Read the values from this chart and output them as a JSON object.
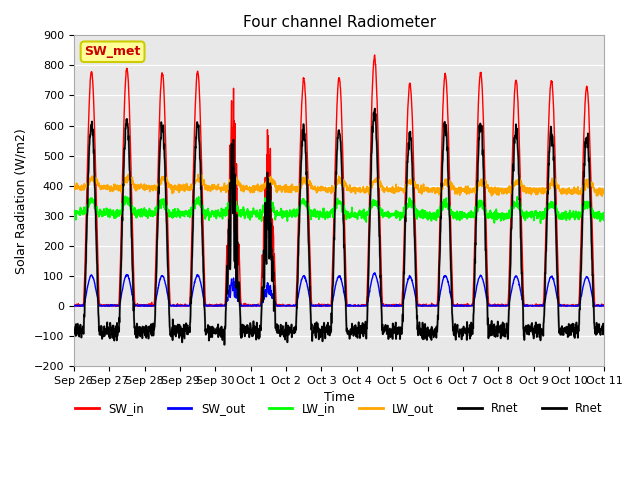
{
  "title": "Four channel Radiometer",
  "xlabel": "Time",
  "ylabel": "Solar Radiation (W/m2)",
  "ylim": [
    -200,
    900
  ],
  "yticks": [
    -200,
    -100,
    0,
    100,
    200,
    300,
    400,
    500,
    600,
    700,
    800,
    900
  ],
  "num_days": 15,
  "legend_label": "SW_met",
  "series_names": [
    "SW_in",
    "SW_out",
    "LW_in",
    "LW_out",
    "Rnet",
    "Rnet"
  ],
  "series_colors": [
    "#ff0000",
    "#0000ff",
    "#00ff00",
    "#ffa500",
    "#000000",
    "#000000"
  ],
  "background_color": "#ffffff",
  "plot_bg_color": "#e8e8e8",
  "grid_color": "#ffffff",
  "sw_met_fg": "#cc0000",
  "sw_met_bg": "#ffff99",
  "sw_met_edge": "#cccc00"
}
